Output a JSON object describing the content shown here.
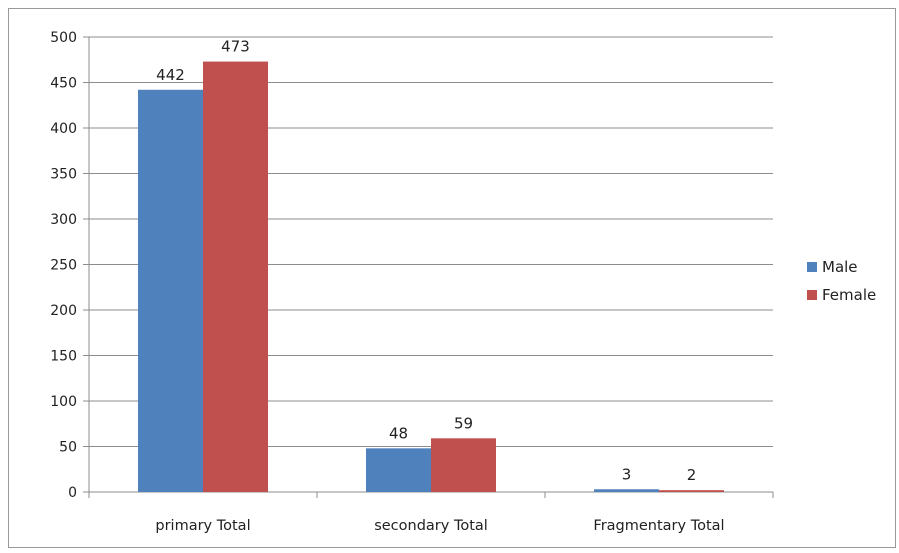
{
  "chart_data": {
    "type": "bar",
    "title": "",
    "xlabel": "",
    "ylabel": "",
    "categories": [
      "primary Total",
      "secondary Total",
      "Fragmentary Total"
    ],
    "series": [
      {
        "name": "Male",
        "values": [
          442,
          48,
          3
        ],
        "color": "#4f81bd"
      },
      {
        "name": "Female",
        "values": [
          473,
          59,
          2
        ],
        "color": "#c0504d"
      }
    ],
    "ylim": [
      0,
      500
    ],
    "yticks": [
      0,
      50,
      100,
      150,
      200,
      250,
      300,
      350,
      400,
      450,
      500
    ],
    "grid": true,
    "legend_position": "right",
    "data_labels": true
  }
}
